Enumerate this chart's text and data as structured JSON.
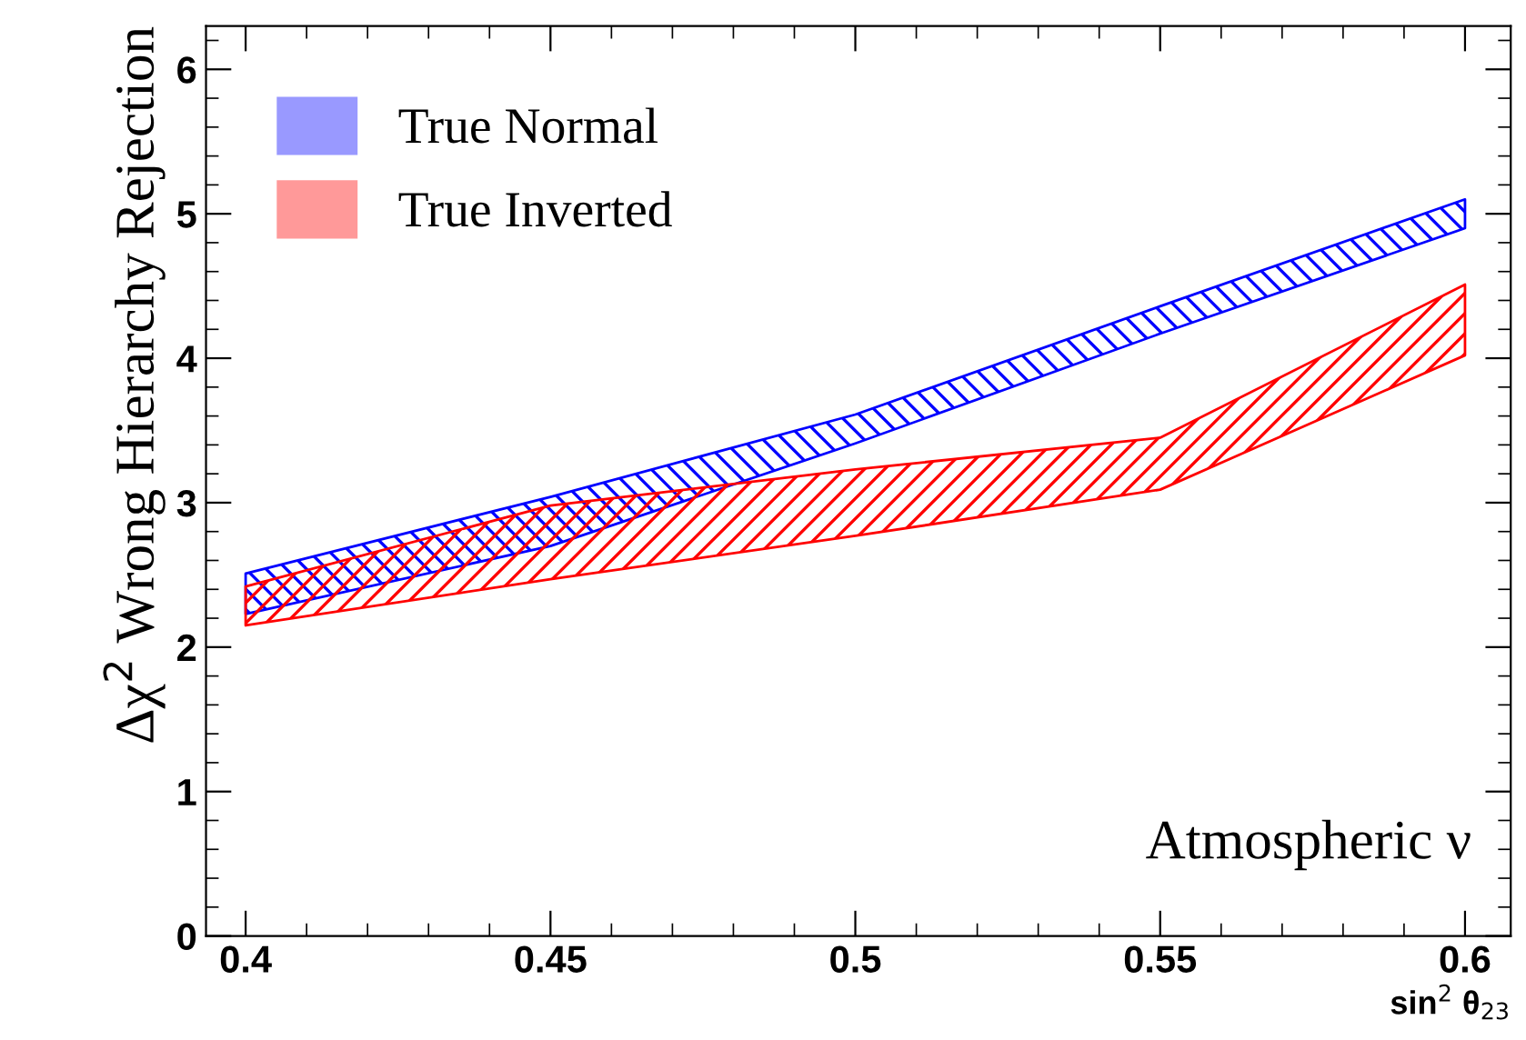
{
  "chart_data": {
    "type": "area",
    "xlabel": "sin$^{2}$ θ$_{23}$",
    "ylabel": "Δχ$^{2}$ Wrong Hierarchy Rejection",
    "x": [
      0.4,
      0.45,
      0.5,
      0.55,
      0.6
    ],
    "series": [
      {
        "name": "True Normal",
        "color": "#0000ff",
        "values": [
          null,
          null,
          null,
          null,
          null
        ],
        "lower": [
          2.23,
          2.7,
          3.41,
          4.17,
          4.9
        ],
        "upper": [
          2.51,
          3.04,
          3.61,
          4.36,
          5.1
        ]
      },
      {
        "name": "True Inverted",
        "color": "#ff0000",
        "values": [
          null,
          null,
          null,
          null,
          null
        ],
        "lower": [
          2.15,
          2.47,
          2.77,
          3.09,
          4.02
        ],
        "upper": [
          2.42,
          2.98,
          3.23,
          3.45,
          4.51
        ]
      }
    ],
    "xlim": [
      0.3935,
      0.6075
    ],
    "ylim": [
      0,
      6.3
    ],
    "xticks": [
      0.4,
      0.45,
      0.5,
      0.55,
      0.6
    ],
    "yticks": [
      0,
      1,
      2,
      3,
      4,
      5,
      6
    ],
    "grid": false,
    "legend": "top left",
    "annotations": [
      "Atmospheric ν"
    ]
  }
}
